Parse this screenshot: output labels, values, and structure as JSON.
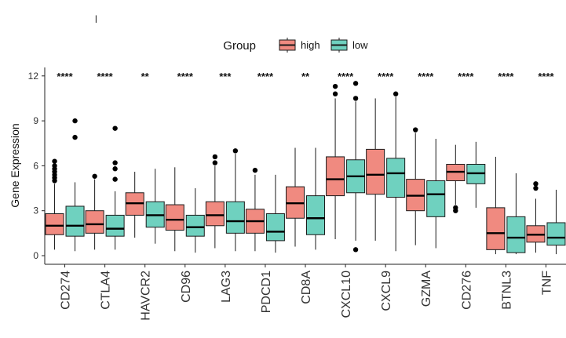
{
  "stray_mark": "l",
  "chart_data": {
    "type": "boxplot",
    "title": "",
    "xlabel": "",
    "ylabel": "Gene Expression",
    "ylim": [
      -0.6,
      12.2
    ],
    "yticks": [
      0,
      3,
      6,
      9,
      12
    ],
    "legend": {
      "title": "Group",
      "placement": "top",
      "entries": [
        {
          "name": "high",
          "color": "#F08A80"
        },
        {
          "name": "low",
          "color": "#6FD1BF"
        }
      ]
    },
    "categories": [
      "CD274",
      "CTLA4",
      "HAVCR2",
      "CD96",
      "LAG3",
      "PDCD1",
      "CD8A",
      "CXCL10",
      "CXCL9",
      "GZMA",
      "CD276",
      "BTNL3",
      "TNF"
    ],
    "significance": [
      "****",
      "****",
      "**",
      "****",
      "***",
      "****",
      "**",
      "****",
      "****",
      "****",
      "****",
      "****",
      "****"
    ],
    "series": [
      {
        "name": "high",
        "boxes": [
          {
            "min": 0.4,
            "q1": 1.4,
            "median": 2.0,
            "q3": 2.8,
            "max": 4.8,
            "outliers": [
              5.0,
              5.2,
              5.4,
              5.6,
              5.8,
              6.0,
              6.3
            ]
          },
          {
            "min": 0.4,
            "q1": 1.5,
            "median": 2.1,
            "q3": 3.0,
            "max": 5.1,
            "outliers": [
              5.3
            ]
          },
          {
            "min": 1.2,
            "q1": 2.7,
            "median": 3.5,
            "q3": 4.2,
            "max": 5.6,
            "outliers": []
          },
          {
            "min": 0.3,
            "q1": 1.7,
            "median": 2.4,
            "q3": 3.4,
            "max": 5.9,
            "outliers": []
          },
          {
            "min": 0.5,
            "q1": 2.0,
            "median": 2.7,
            "q3": 3.6,
            "max": 6.0,
            "outliers": [
              6.2,
              6.6
            ]
          },
          {
            "min": 0.3,
            "q1": 1.5,
            "median": 2.3,
            "q3": 3.1,
            "max": 5.4,
            "outliers": [
              5.7
            ]
          },
          {
            "min": 0.6,
            "q1": 2.5,
            "median": 3.5,
            "q3": 4.6,
            "max": 7.2,
            "outliers": []
          },
          {
            "min": 1.1,
            "q1": 4.0,
            "median": 5.1,
            "q3": 6.6,
            "max": 10.5,
            "outliers": [
              10.8,
              11.3
            ]
          },
          {
            "min": 1.0,
            "q1": 4.1,
            "median": 5.4,
            "q3": 7.1,
            "max": 10.5,
            "outliers": []
          },
          {
            "min": 0.7,
            "q1": 3.0,
            "median": 4.0,
            "q3": 5.1,
            "max": 8.2,
            "outliers": [
              8.4
            ]
          },
          {
            "min": 3.4,
            "q1": 5.0,
            "median": 5.6,
            "q3": 6.1,
            "max": 7.4,
            "outliers": [
              3.0,
              3.2
            ]
          },
          {
            "min": 0.1,
            "q1": 0.4,
            "median": 1.5,
            "q3": 3.2,
            "max": 6.6,
            "outliers": []
          },
          {
            "min": 0.2,
            "q1": 0.9,
            "median": 1.4,
            "q3": 2.0,
            "max": 3.8,
            "outliers": [
              4.5,
              4.8
            ]
          }
        ]
      },
      {
        "name": "low",
        "boxes": [
          {
            "min": 0.3,
            "q1": 1.3,
            "median": 2.0,
            "q3": 3.3,
            "max": 4.9,
            "outliers": [
              7.9,
              9.0
            ]
          },
          {
            "min": 0.4,
            "q1": 1.3,
            "median": 1.8,
            "q3": 2.7,
            "max": 4.3,
            "outliers": [
              5.1,
              5.8,
              6.2,
              8.5
            ]
          },
          {
            "min": 0.8,
            "q1": 1.9,
            "median": 2.7,
            "q3": 3.6,
            "max": 5.8,
            "outliers": []
          },
          {
            "min": 0.2,
            "q1": 1.3,
            "median": 1.9,
            "q3": 2.7,
            "max": 4.5,
            "outliers": []
          },
          {
            "min": 0.3,
            "q1": 1.5,
            "median": 2.3,
            "q3": 3.6,
            "max": 6.8,
            "outliers": [
              7.0
            ]
          },
          {
            "min": 0.2,
            "q1": 1.0,
            "median": 1.6,
            "q3": 2.8,
            "max": 5.4,
            "outliers": []
          },
          {
            "min": 0.4,
            "q1": 1.4,
            "median": 2.5,
            "q3": 4.0,
            "max": 7.2,
            "outliers": []
          },
          {
            "min": 1.0,
            "q1": 4.2,
            "median": 5.3,
            "q3": 6.4,
            "max": 10.3,
            "outliers": [
              0.4,
              10.5,
              11.5
            ]
          },
          {
            "min": 0.3,
            "q1": 3.9,
            "median": 5.5,
            "q3": 6.5,
            "max": 10.6,
            "outliers": [
              10.8
            ]
          },
          {
            "min": 0.5,
            "q1": 2.6,
            "median": 4.1,
            "q3": 5.0,
            "max": 7.8,
            "outliers": []
          },
          {
            "min": 3.2,
            "q1": 4.8,
            "median": 5.5,
            "q3": 6.1,
            "max": 7.6,
            "outliers": []
          },
          {
            "min": 0.1,
            "q1": 0.2,
            "median": 1.2,
            "q3": 2.6,
            "max": 5.5,
            "outliers": []
          },
          {
            "min": 0.1,
            "q1": 0.7,
            "median": 1.2,
            "q3": 2.2,
            "max": 4.4,
            "outliers": []
          }
        ]
      }
    ]
  }
}
